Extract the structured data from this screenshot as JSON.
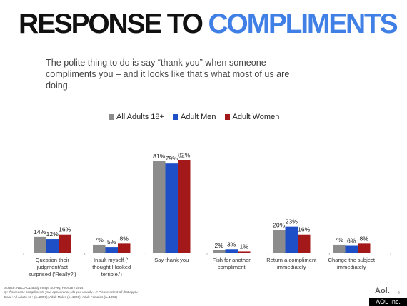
{
  "title": {
    "part1": "RESPONSE TO",
    "part2": "COMPLIMENTS"
  },
  "subtitle": "The polite thing to do is say “thank you” when someone compliments you – and it looks like that’s what most of us are doing.",
  "colors": {
    "title_accent": "#3f7fe6",
    "all_adults": "#8c8c8c",
    "adult_men": "#1f4fc7",
    "adult_women": "#a31818"
  },
  "chart_data": {
    "type": "bar",
    "title": "",
    "xlabel": "",
    "ylabel": "",
    "ylim": [
      0,
      100
    ],
    "grid": false,
    "legend_placement": "top",
    "categories": [
      "Question their judgment/act surprised ('Really?')",
      "Insult myself ('I thought I looked terrible.')",
      "Say thank you",
      "Fish for another compliment",
      "Return a compliment immediately",
      "Change the subject immediately"
    ],
    "category_lines": [
      [
        "Question their",
        "judgment/act",
        "surprised ('Really?')"
      ],
      [
        "Insult myself ('I",
        "thought I looked",
        "terrible.')"
      ],
      [
        "Say thank you"
      ],
      [
        "Fish for another",
        "compliment"
      ],
      [
        "Return a compliment",
        "immediately"
      ],
      [
        "Change the subject",
        "immediately"
      ]
    ],
    "series": [
      {
        "name": "All Adults 18+",
        "color": "#8c8c8c",
        "values": [
          14,
          7,
          81,
          2,
          20,
          7
        ],
        "labels": [
          "14%",
          "7%",
          "81%",
          "2%",
          "20%",
          "7%"
        ]
      },
      {
        "name": "Adult Men",
        "color": "#1f4fc7",
        "values": [
          12,
          5,
          79,
          3,
          23,
          6
        ],
        "labels": [
          "12%",
          "5%",
          "79%",
          "3%",
          "23%",
          "6%"
        ]
      },
      {
        "name": "Adult Women",
        "color": "#a31818",
        "values": [
          16,
          8,
          82,
          1,
          16,
          8
        ],
        "labels": [
          "16%",
          "8%",
          "82%",
          "1%",
          "16%",
          "8%"
        ]
      }
    ]
  },
  "footnotes": {
    "source": "Source: NBC/AOL Body Image Survey, February 2014",
    "question": "Q: If someone compliments your appearance, do you usually…? Please select all that apply.",
    "base": "Base: All Adults 18+ (n=2059); Adult Males (n=1006); Adult Females (n=1053)"
  },
  "brand": "Aol.",
  "page_number": "9",
  "corner_tag": "AOL Inc."
}
